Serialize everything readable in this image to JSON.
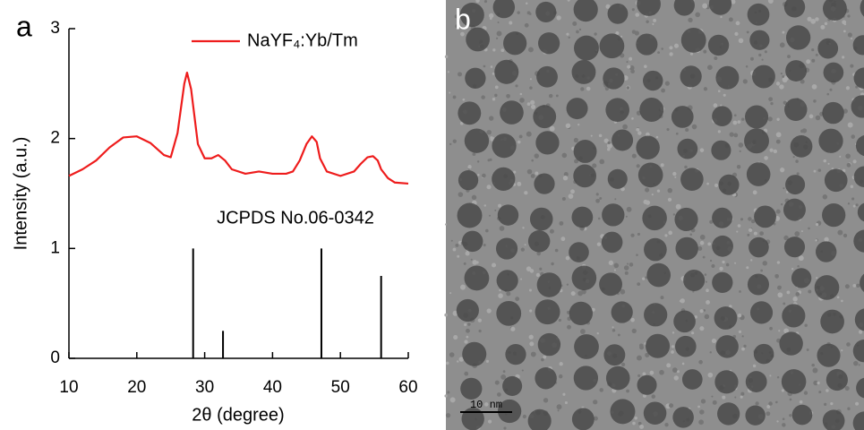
{
  "chart_data": {
    "type": "line",
    "panel_label": "a",
    "xlabel": "2θ (degree)",
    "ylabel": "Intensity (a.u.)",
    "xlim": [
      10,
      60
    ],
    "xticks": [
      10,
      20,
      30,
      40,
      50,
      60
    ],
    "ylim": [
      0,
      3
    ],
    "yticks": [
      0,
      1,
      2,
      3
    ],
    "legend": "upper right",
    "series": [
      {
        "name": "NaYF₄:Yb/Tm",
        "color": "#ee1c1c",
        "x": [
          10,
          12,
          14,
          16,
          18,
          20,
          22,
          24,
          25,
          26,
          27,
          27.4,
          28,
          29,
          30,
          31,
          32,
          33,
          34,
          36,
          38,
          39,
          40,
          42,
          43,
          44,
          45,
          45.8,
          46.5,
          47,
          48,
          50,
          52,
          53,
          54,
          54.8,
          55.5,
          56,
          57,
          58,
          60
        ],
        "values": [
          1.66,
          1.72,
          1.8,
          1.92,
          2.01,
          2.02,
          1.96,
          1.85,
          1.83,
          2.05,
          2.5,
          2.6,
          2.45,
          1.95,
          1.82,
          1.82,
          1.85,
          1.8,
          1.72,
          1.68,
          1.7,
          1.69,
          1.68,
          1.68,
          1.7,
          1.8,
          1.95,
          2.02,
          1.97,
          1.82,
          1.7,
          1.66,
          1.7,
          1.77,
          1.83,
          1.84,
          1.8,
          1.72,
          1.64,
          1.6,
          1.59
        ]
      }
    ],
    "reference": {
      "label": "JCPDS No.06-0342",
      "color": "#000000",
      "x": [
        28.3,
        32.7,
        47.2,
        56.0
      ],
      "values": [
        1.0,
        0.25,
        1.0,
        0.75
      ]
    }
  },
  "panel_b": {
    "label": "b",
    "scale_bar": "10 nm"
  }
}
